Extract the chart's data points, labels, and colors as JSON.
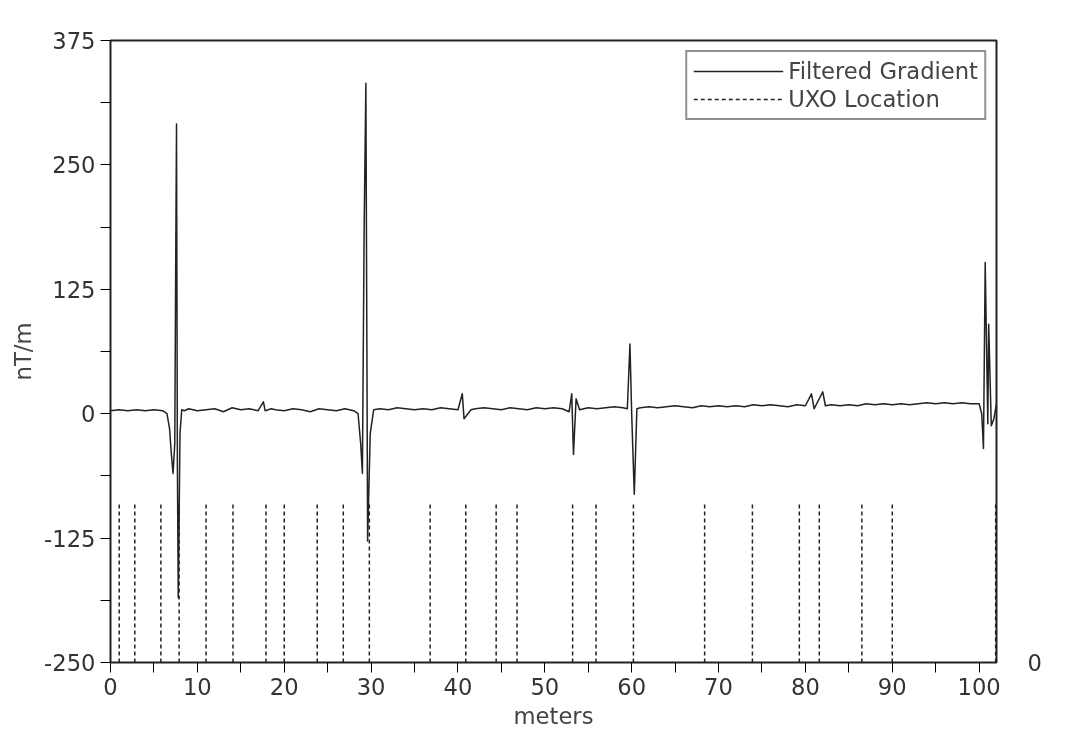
{
  "chart_data": {
    "type": "line",
    "xlabel": "meters",
    "ylabel": "nT/m",
    "xlim": [
      0,
      102
    ],
    "ylim": [
      -250,
      375
    ],
    "xticks": [
      0,
      {
        "value": 5,
        "label": null
      },
      10,
      {
        "value": 15,
        "label": null
      },
      20,
      {
        "value": 25,
        "label": null
      },
      30,
      {
        "value": 35,
        "label": null
      },
      40,
      {
        "value": 45,
        "label": null
      },
      50,
      {
        "value": 55,
        "label": null
      },
      60,
      {
        "value": 65,
        "label": null
      },
      70,
      {
        "value": 75,
        "label": null
      },
      80,
      {
        "value": 85,
        "label": null
      },
      90,
      {
        "value": 95,
        "label": null
      },
      100
    ],
    "yticks": [
      -250,
      {
        "value": -187.5,
        "label": null
      },
      -125,
      {
        "value": -62.5,
        "label": null
      },
      0,
      {
        "value": 62.5,
        "label": null
      },
      125,
      {
        "value": 187.5,
        "label": null
      },
      250,
      {
        "value": 312.5,
        "label": null
      },
      375
    ],
    "grid": false,
    "legend": "top right",
    "annotations": [
      "0"
    ],
    "series": [
      {
        "name": "Filtered Gradient",
        "color": "#222222",
        "line_style": "solid",
        "x": [
          0,
          1,
          2,
          3,
          4,
          5,
          6,
          6.5,
          6.8,
          7.0,
          7.2,
          7.4,
          7.5,
          7.6,
          7.7,
          7.8,
          8.0,
          8.2,
          8.5,
          9,
          10,
          11,
          12,
          13,
          14,
          15,
          16,
          17,
          17.6,
          17.8,
          18.5,
          19,
          20,
          21,
          22,
          23,
          24,
          25,
          26,
          27,
          28,
          28.5,
          28.8,
          29.0,
          29.2,
          29.4,
          29.6,
          29.9,
          30.3,
          31,
          32,
          33,
          34,
          35,
          36,
          37,
          38,
          39,
          40,
          40.5,
          40.7,
          41.5,
          42,
          43,
          44,
          45,
          46,
          47,
          48,
          49,
          50,
          51,
          52,
          52.8,
          53.1,
          53.3,
          53.6,
          54,
          55,
          56,
          57,
          58,
          59,
          59.5,
          59.8,
          60.0,
          60.3,
          60.6,
          61,
          62,
          63,
          64,
          65,
          66,
          67,
          68,
          69,
          70,
          71,
          72,
          73,
          74,
          75,
          76,
          77,
          78,
          79,
          80,
          80.7,
          81,
          82,
          82.3,
          83,
          84,
          85,
          86,
          87,
          88,
          89,
          90,
          91,
          92,
          93,
          94,
          95,
          96,
          97,
          98,
          99,
          100,
          100.3,
          100.5,
          100.7,
          101.0,
          101.1,
          101.4,
          101.7,
          102
        ],
        "values": [
          3,
          4,
          3,
          4,
          3,
          4,
          3,
          0,
          -15,
          -40,
          -60,
          -30,
          140,
          291,
          -50,
          -185,
          -20,
          4,
          3,
          5,
          3,
          4,
          5,
          2,
          6,
          4,
          5,
          3,
          12,
          3,
          5,
          4,
          3,
          5,
          4,
          2,
          5,
          4,
          3,
          5,
          3,
          0,
          -30,
          -60,
          185,
          332,
          -128,
          -20,
          4,
          5,
          4,
          6,
          5,
          4,
          5,
          4,
          6,
          5,
          4,
          20,
          -5,
          4,
          5,
          6,
          5,
          4,
          6,
          5,
          4,
          6,
          5,
          6,
          5,
          2,
          20,
          -41,
          15,
          4,
          6,
          5,
          6,
          7,
          6,
          5,
          70,
          0,
          -81,
          5,
          6,
          7,
          6,
          7,
          8,
          7,
          6,
          8,
          7,
          8,
          7,
          8,
          7,
          9,
          8,
          9,
          8,
          7,
          9,
          8,
          20,
          5,
          22,
          8,
          9,
          8,
          9,
          8,
          10,
          9,
          10,
          9,
          10,
          9,
          10,
          11,
          10,
          11,
          10,
          11,
          10,
          10,
          0,
          -35,
          152,
          -10,
          90,
          -12,
          -5,
          10
        ]
      },
      {
        "name": "UXO Location",
        "color": "#222222",
        "line_style": "dashed",
        "x": [
          1.0,
          1.0,
          null,
          2.8,
          2.8,
          null,
          5.8,
          5.8,
          null,
          7.9,
          7.9,
          null,
          11.0,
          11.0,
          null,
          14.1,
          14.1,
          null,
          17.9,
          17.9,
          null,
          20.0,
          20.0,
          null,
          23.8,
          23.8,
          null,
          26.8,
          26.8,
          null,
          29.8,
          29.8,
          null,
          36.8,
          36.8,
          null,
          40.9,
          40.9,
          null,
          44.4,
          44.4,
          null,
          46.8,
          46.8,
          null,
          53.2,
          53.2,
          null,
          55.9,
          55.9,
          null,
          60.2,
          60.2,
          null,
          68.4,
          68.4,
          null,
          73.9,
          73.9,
          null,
          79.3,
          79.3,
          null,
          81.6,
          81.6,
          null,
          86.5,
          86.5,
          null,
          90.0,
          90.0,
          null,
          101.9,
          101.9
        ],
        "values": [
          -250,
          -91,
          null,
          -250,
          -91,
          null,
          -250,
          -91,
          null,
          -250,
          -91,
          null,
          -250,
          -91,
          null,
          -250,
          -91,
          null,
          -250,
          -91,
          null,
          -250,
          -91,
          null,
          -250,
          -91,
          null,
          -250,
          -91,
          null,
          -250,
          -91,
          null,
          -250,
          -91,
          null,
          -250,
          -91,
          null,
          -250,
          -91,
          null,
          -250,
          -91,
          null,
          -250,
          -91,
          null,
          -250,
          -91,
          null,
          -250,
          -91,
          null,
          -250,
          -91,
          null,
          -250,
          -91,
          null,
          -250,
          -91,
          null,
          -250,
          -91,
          null,
          -250,
          -91,
          null,
          -250,
          -91,
          null,
          -250,
          -91
        ]
      }
    ]
  }
}
